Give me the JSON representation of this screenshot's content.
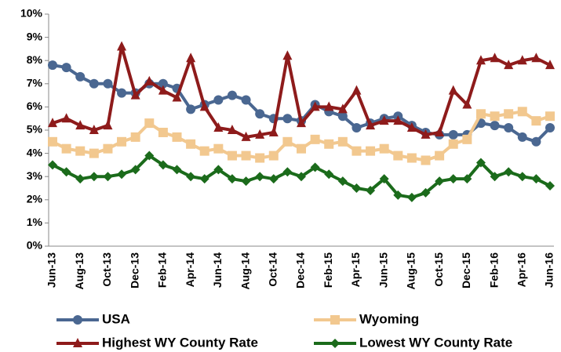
{
  "chart_data": {
    "type": "line",
    "categories": [
      "Jun-13",
      null,
      "Aug-13",
      null,
      "Oct-13",
      null,
      "Dec-13",
      null,
      "Feb-14",
      null,
      "Apr-14",
      null,
      "Jun-14",
      null,
      "Aug-14",
      null,
      "Oct-14",
      null,
      "Dec-14",
      null,
      "Feb-15",
      null,
      "Apr-15",
      null,
      "Jun-15",
      null,
      "Aug-15",
      null,
      "Oct-15",
      null,
      "Dec-15",
      null,
      "Feb-16",
      null,
      "Apr-16",
      null,
      "Jun-16"
    ],
    "series": [
      {
        "name": "USA",
        "color": "#4a6791",
        "marker": "circle",
        "values": [
          7.8,
          7.7,
          7.3,
          7.0,
          7.0,
          6.6,
          6.6,
          7.0,
          7.0,
          6.8,
          5.9,
          6.1,
          6.3,
          6.5,
          6.3,
          5.7,
          5.5,
          5.5,
          5.4,
          6.1,
          5.8,
          5.6,
          5.1,
          5.3,
          5.5,
          5.6,
          5.2,
          4.9,
          4.8,
          4.8,
          4.8,
          5.3,
          5.2,
          5.1,
          4.7,
          4.5,
          5.1
        ]
      },
      {
        "name": "Wyoming",
        "color": "#f2c88f",
        "marker": "square",
        "values": [
          4.5,
          4.2,
          4.1,
          4.0,
          4.2,
          4.5,
          4.7,
          5.3,
          4.9,
          4.7,
          4.4,
          4.1,
          4.2,
          3.9,
          3.9,
          3.8,
          3.9,
          4.5,
          4.2,
          4.6,
          4.4,
          4.5,
          4.1,
          4.1,
          4.2,
          3.9,
          3.8,
          3.7,
          3.9,
          4.4,
          4.6,
          5.7,
          5.6,
          5.7,
          5.8,
          5.4,
          5.6
        ]
      },
      {
        "name": "Highest WY County Rate",
        "color": "#8e1b1b",
        "marker": "triangle",
        "values": [
          5.3,
          5.5,
          5.2,
          5.0,
          5.2,
          8.6,
          6.5,
          7.1,
          6.7,
          6.4,
          8.1,
          6.0,
          5.1,
          5.0,
          4.7,
          4.8,
          4.9,
          8.2,
          5.3,
          6.0,
          6.0,
          5.9,
          6.7,
          5.2,
          5.4,
          5.4,
          5.1,
          4.8,
          4.9,
          6.7,
          6.1,
          8.0,
          8.1,
          7.8,
          8.0,
          8.1,
          7.8
        ]
      },
      {
        "name": "Lowest WY County Rate",
        "color": "#1b6b1b",
        "marker": "diamond",
        "values": [
          3.5,
          3.2,
          2.9,
          3.0,
          3.0,
          3.1,
          3.3,
          3.9,
          3.5,
          3.3,
          3.0,
          2.9,
          3.3,
          2.9,
          2.8,
          3.0,
          2.9,
          3.2,
          3.0,
          3.4,
          3.1,
          2.8,
          2.5,
          2.4,
          2.9,
          2.2,
          2.1,
          2.3,
          2.8,
          2.9,
          2.9,
          3.6,
          3.0,
          3.2,
          3.0,
          2.9,
          2.6
        ]
      }
    ],
    "ylim": [
      0,
      10
    ],
    "yticks": [
      {
        "value": 0,
        "label": "0%"
      },
      {
        "value": 1,
        "label": "1%"
      },
      {
        "value": 2,
        "label": "2%"
      },
      {
        "value": 3,
        "label": "3%"
      },
      {
        "value": 4,
        "label": "4%"
      },
      {
        "value": 5,
        "label": "5%"
      },
      {
        "value": 6,
        "label": "6%"
      },
      {
        "value": 7,
        "label": "7%"
      },
      {
        "value": 8,
        "label": "8%"
      },
      {
        "value": 9,
        "label": "9%"
      },
      {
        "value": 10,
        "label": "10%"
      }
    ],
    "grid": false
  }
}
